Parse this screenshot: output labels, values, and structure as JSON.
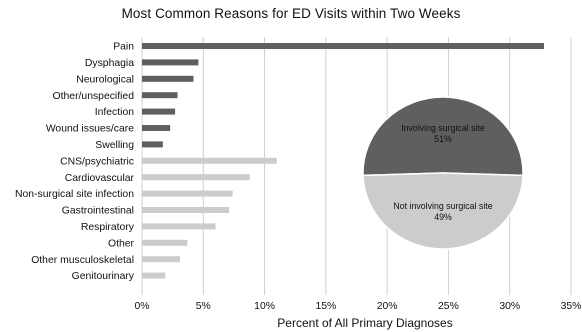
{
  "chart_data": [
    {
      "type": "bar",
      "orientation": "horizontal",
      "title": "Most Common Reasons for ED Visits within Two Weeks",
      "xlabel": "Percent of All Primary Diagnoses",
      "xlim": [
        0,
        35
      ],
      "xticks": [
        "0%",
        "5%",
        "10%",
        "15%",
        "20%",
        "25%",
        "30%",
        "35%"
      ],
      "grid": "vertical",
      "categories": [
        "Pain",
        "Dysphagia",
        "Neurological",
        "Other/unspecified",
        "Infection",
        "Wound issues/care",
        "Swelling",
        "CNS/psychiatric",
        "Cardiovascular",
        "Non-surgical site infection",
        "Gastrointestinal",
        "Respiratory",
        "Other",
        "Other musculoskeletal",
        "Genitourinary"
      ],
      "values": [
        32.8,
        4.6,
        4.2,
        2.9,
        2.7,
        2.3,
        1.7,
        11.0,
        8.8,
        7.4,
        7.1,
        6.0,
        3.7,
        3.1,
        1.9
      ],
      "group": [
        "surgical",
        "surgical",
        "surgical",
        "surgical",
        "surgical",
        "surgical",
        "surgical",
        "non-surgical",
        "non-surgical",
        "non-surgical",
        "non-surgical",
        "non-surgical",
        "non-surgical",
        "non-surgical",
        "non-surgical"
      ],
      "colors": {
        "surgical": "#5f5f5f",
        "non-surgical": "#cccccc"
      }
    },
    {
      "type": "pie",
      "slices": [
        {
          "label": "Involving surgical site",
          "value": 51,
          "value_label": "51%",
          "color": "#5f5f5f"
        },
        {
          "label": "Not involving surgical site",
          "value": 49,
          "value_label": "49%",
          "color": "#cccccc"
        }
      ]
    }
  ]
}
